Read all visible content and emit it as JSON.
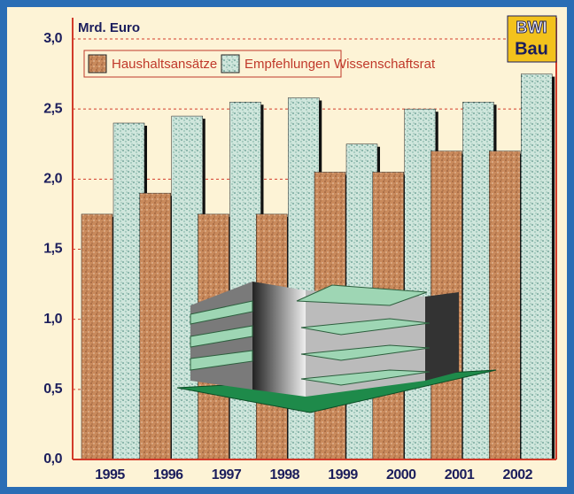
{
  "chart_data": {
    "type": "bar",
    "ylabel": "Mrd. Euro",
    "annotations": [
      "BWI",
      "Bau"
    ],
    "categories": [
      "1995",
      "1996",
      "1997",
      "1998",
      "1999",
      "2000",
      "2001",
      "2002"
    ],
    "series": [
      {
        "name": "Haushaltsansätze",
        "color": "#c98a5c",
        "values": [
          1.75,
          1.9,
          1.75,
          1.75,
          2.05,
          2.05,
          2.2,
          2.2
        ]
      },
      {
        "name": "Empfehlungen Wissenschaftsrat",
        "color": "#cfe6dc",
        "values": [
          2.4,
          2.45,
          2.55,
          2.58,
          2.25,
          2.5,
          2.55,
          2.75
        ]
      }
    ],
    "ylim": [
      0,
      3
    ],
    "yticks": [
      {
        "value": 0,
        "label": "0,0"
      },
      {
        "value": 0.5,
        "label": "0,5"
      },
      {
        "value": 1,
        "label": "1,0"
      },
      {
        "value": 1.5,
        "label": "1,5"
      },
      {
        "value": 2,
        "label": "2,0"
      },
      {
        "value": 2.5,
        "label": "2,5"
      },
      {
        "value": 3,
        "label": "3,0"
      }
    ],
    "grid": true
  }
}
